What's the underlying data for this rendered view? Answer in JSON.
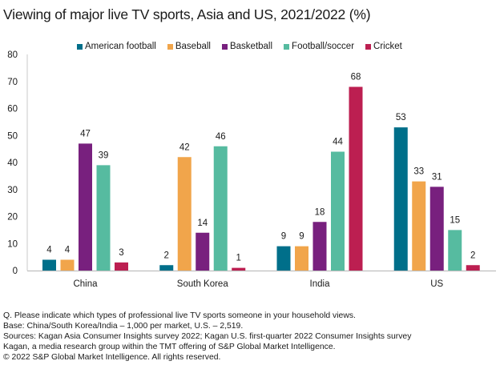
{
  "chart_data": {
    "type": "bar",
    "title": "Viewing of major live TV sports, Asia and US, 2021/2022 (%)",
    "xlabel": "",
    "ylabel": "",
    "ylim": [
      0,
      80
    ],
    "yticks": [
      0,
      10,
      20,
      30,
      40,
      50,
      60,
      70,
      80
    ],
    "grid": false,
    "legend_position": "top",
    "categories": [
      "China",
      "South Korea",
      "India",
      "US"
    ],
    "series": [
      {
        "name": "American football",
        "color": "#006f8a",
        "values": [
          4,
          2,
          9,
          53
        ]
      },
      {
        "name": "Baseball",
        "color": "#f1a54b",
        "values": [
          4,
          42,
          9,
          33
        ]
      },
      {
        "name": "Basketball",
        "color": "#78207e",
        "values": [
          47,
          14,
          18,
          31
        ]
      },
      {
        "name": "Football/soccer",
        "color": "#56bba0",
        "values": [
          39,
          46,
          44,
          15
        ]
      },
      {
        "name": "Cricket",
        "color": "#bc1f51",
        "values": [
          3,
          1,
          68,
          2
        ]
      }
    ]
  },
  "notes": [
    "Q. Please indicate which types of professional live TV sports someone in your household views.",
    "Base: China/South Korea/India – 1,000 per market, U.S. – 2,519.",
    "Sources: Kagan Asia Consumer Insights survey 2022; Kagan U.S. first-quarter 2022 Consumer Insights survey",
    "Kagan, a media research group within the TMT offering of S&P Global Market Intelligence.",
    "© 2022 S&P Global Market Intelligence.  All rights reserved."
  ]
}
